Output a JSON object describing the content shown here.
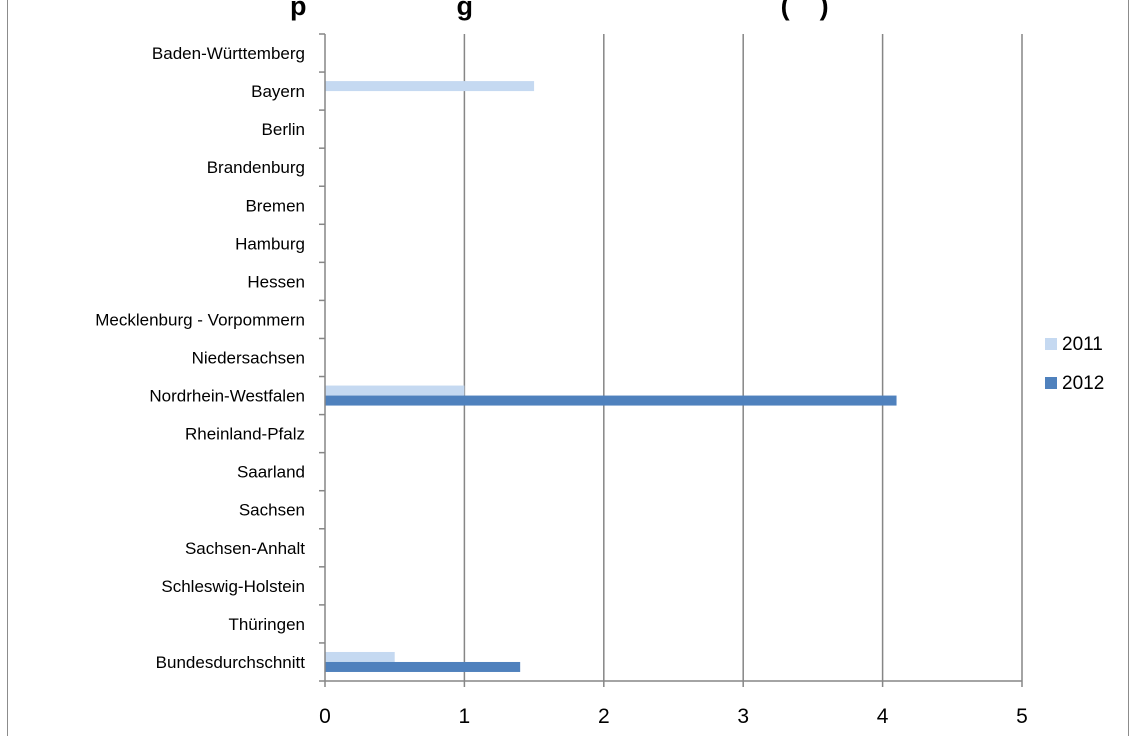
{
  "chart_data": {
    "type": "bar",
    "orientation": "horizontal",
    "title": "",
    "visible_title_fragment": "p                    g                                         (    )",
    "categories": [
      "Baden-Württemberg",
      "Bayern",
      "Berlin",
      "Brandenburg",
      "Bremen",
      "Hamburg",
      "Hessen",
      "Mecklenburg - Vorpommern",
      "Niedersachsen",
      "Nordrhein-Westfalen",
      "Rheinland-Pfalz",
      "Saarland",
      "Sachsen",
      "Sachsen-Anhalt",
      "Schleswig-Holstein",
      "Thüringen",
      "Bundesdurchschnitt"
    ],
    "series": [
      {
        "name": "2011",
        "color": "#c5d9f1",
        "values": [
          0,
          1.5,
          0,
          0,
          0,
          0,
          0,
          0,
          0,
          1,
          0,
          0,
          0,
          0,
          0,
          0,
          0.5
        ]
      },
      {
        "name": "2012",
        "color": "#4f81bd",
        "values": [
          0,
          0,
          0,
          0,
          0,
          0,
          0,
          0,
          0,
          4.1,
          0,
          0,
          0,
          0,
          0,
          0,
          1.4
        ]
      }
    ],
    "xlim": [
      0,
      5
    ],
    "x_ticks": [
      "0",
      "1",
      "2",
      "3",
      "4",
      "5"
    ],
    "xlabel": "",
    "ylabel": "",
    "grid": "vertical",
    "legend_position": "right"
  }
}
